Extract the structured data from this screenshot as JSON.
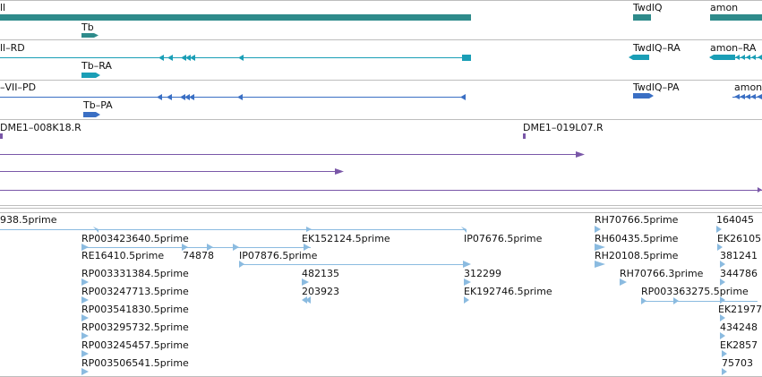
{
  "colors": {
    "gene": "#2e8b8b",
    "transcript_ra": "#1a9eb6",
    "transcript_pa": "#3a6fc4",
    "clone": "#7a57a8",
    "est": "#8bbbe0",
    "separator": "#bdbdbd"
  },
  "track_gene": {
    "label_left": "ll",
    "label_twdlq": "TwdlQ",
    "label_amon": "amon",
    "label_tb": "Tb"
  },
  "track_ra": {
    "label_left": "ll–RD",
    "label_twdlq": "TwdlQ–RA",
    "label_amon": "amon–RA",
    "label_tb": "Tb–RA"
  },
  "track_pa": {
    "label_left": "–VII–PD",
    "label_twdlq": "TwdlQ–PA",
    "label_amon": "amon",
    "label_tb": "Tb–PA"
  },
  "track_clones": {
    "label_1": "DME1–008K18.R",
    "label_2": "DME1–019L07.R"
  },
  "track_est": {
    "c1": [
      "938.5prime",
      "RP003423640.5prime",
      "RE16410.5prime",
      "RP003331384.5prime",
      "RP003247713.5prime",
      "RP003541830.5prime",
      "RP003295732.5prime",
      "RP003245457.5prime",
      "RP003506541.5prime"
    ],
    "c2": [
      "74878",
      "IP07876.5prime",
      "EK152124.5prime",
      "482135",
      "203923"
    ],
    "c3": [
      "IP07676.5prime",
      "312299",
      "EK192746.5prime"
    ],
    "c4": [
      "RH70766.5prime",
      "RH60435.5prime",
      "RH20108.5prime",
      "RH70766.3prime",
      "RP003363275.5prime"
    ],
    "c5": [
      "164045",
      "EK26105",
      "381241",
      "344786",
      "EK21977",
      "434248",
      "EK2857",
      "75703"
    ]
  }
}
